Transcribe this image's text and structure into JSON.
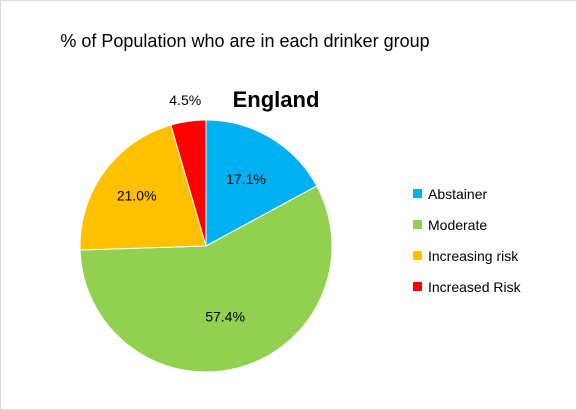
{
  "chart_data": {
    "type": "pie",
    "title": "% of Population  who are in each drinker group",
    "subtitle": "England",
    "categories": [
      "Abstainer",
      "Moderate",
      "Increasing risk",
      "Increased Risk"
    ],
    "values": [
      17.1,
      57.4,
      21.0,
      4.5
    ],
    "value_labels": [
      "17.1%",
      "57.4%",
      "21.0%",
      "4.5%"
    ],
    "colors": [
      "#00B0F0",
      "#92D050",
      "#FFC000",
      "#FF0000"
    ],
    "start_angle_deg": 0,
    "direction": "clockwise",
    "legend_position": "right"
  }
}
